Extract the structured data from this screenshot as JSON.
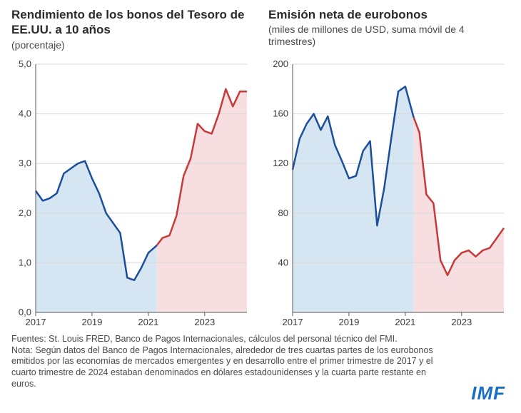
{
  "panels": [
    {
      "title": "Rendimiento de los bonos del Tesoro de EE.UU. a 10 años",
      "subtitle": "(porcentaje)",
      "type": "line",
      "x_start": 2017,
      "x_end": 2024.5,
      "x_ticks": [
        2017,
        2019,
        2021,
        2023
      ],
      "y_min": 0.0,
      "y_max": 5.0,
      "y_ticks": [
        0.0,
        1.0,
        2.0,
        3.0,
        4.0,
        5.0
      ],
      "y_tick_fmt": "comma1",
      "split_x": 2021.3,
      "fill_left_color": "#d6e5f2",
      "fill_right_color": "#f7dee0",
      "line_left_color": "#1b4f9c",
      "line_right_color": "#c83a3a",
      "line_width": 2.5,
      "series": [
        {
          "x": 2017.0,
          "y": 2.45
        },
        {
          "x": 2017.25,
          "y": 2.25
        },
        {
          "x": 2017.5,
          "y": 2.3
        },
        {
          "x": 2017.75,
          "y": 2.4
        },
        {
          "x": 2018.0,
          "y": 2.8
        },
        {
          "x": 2018.25,
          "y": 2.9
        },
        {
          "x": 2018.5,
          "y": 3.0
        },
        {
          "x": 2018.75,
          "y": 3.05
        },
        {
          "x": 2019.0,
          "y": 2.7
        },
        {
          "x": 2019.25,
          "y": 2.4
        },
        {
          "x": 2019.5,
          "y": 2.0
        },
        {
          "x": 2019.75,
          "y": 1.8
        },
        {
          "x": 2020.0,
          "y": 1.6
        },
        {
          "x": 2020.25,
          "y": 0.7
        },
        {
          "x": 2020.5,
          "y": 0.65
        },
        {
          "x": 2020.75,
          "y": 0.9
        },
        {
          "x": 2021.0,
          "y": 1.2
        },
        {
          "x": 2021.3,
          "y": 1.35
        },
        {
          "x": 2021.5,
          "y": 1.5
        },
        {
          "x": 2021.75,
          "y": 1.55
        },
        {
          "x": 2022.0,
          "y": 1.95
        },
        {
          "x": 2022.25,
          "y": 2.75
        },
        {
          "x": 2022.5,
          "y": 3.1
        },
        {
          "x": 2022.75,
          "y": 3.8
        },
        {
          "x": 2023.0,
          "y": 3.65
        },
        {
          "x": 2023.25,
          "y": 3.6
        },
        {
          "x": 2023.5,
          "y": 4.0
        },
        {
          "x": 2023.75,
          "y": 4.5
        },
        {
          "x": 2024.0,
          "y": 4.15
        },
        {
          "x": 2024.25,
          "y": 4.45
        },
        {
          "x": 2024.5,
          "y": 4.45
        }
      ],
      "background_color": "#ffffff",
      "grid_color": "#d8d8d8"
    },
    {
      "title": "Emisión neta de eurobonos",
      "subtitle": "(miles de millones de USD, suma móvil de 4 trimestres)",
      "type": "line",
      "x_start": 2017,
      "x_end": 2024.5,
      "x_ticks": [
        2017,
        2019,
        2021,
        2023
      ],
      "y_min": 0,
      "y_max": 200,
      "y_ticks": [
        40,
        80,
        120,
        160,
        200
      ],
      "y_tick_fmt": "int",
      "split_x": 2021.3,
      "fill_left_color": "#d6e5f2",
      "fill_right_color": "#f7dee0",
      "line_left_color": "#1b4f9c",
      "line_right_color": "#c83a3a",
      "line_width": 2.5,
      "series": [
        {
          "x": 2017.0,
          "y": 115
        },
        {
          "x": 2017.25,
          "y": 140
        },
        {
          "x": 2017.5,
          "y": 152
        },
        {
          "x": 2017.75,
          "y": 160
        },
        {
          "x": 2018.0,
          "y": 147
        },
        {
          "x": 2018.25,
          "y": 158
        },
        {
          "x": 2018.5,
          "y": 135
        },
        {
          "x": 2018.75,
          "y": 122
        },
        {
          "x": 2019.0,
          "y": 108
        },
        {
          "x": 2019.25,
          "y": 110
        },
        {
          "x": 2019.5,
          "y": 130
        },
        {
          "x": 2019.75,
          "y": 138
        },
        {
          "x": 2020.0,
          "y": 70
        },
        {
          "x": 2020.25,
          "y": 100
        },
        {
          "x": 2020.5,
          "y": 140
        },
        {
          "x": 2020.75,
          "y": 178
        },
        {
          "x": 2021.0,
          "y": 182
        },
        {
          "x": 2021.3,
          "y": 157
        },
        {
          "x": 2021.5,
          "y": 145
        },
        {
          "x": 2021.75,
          "y": 95
        },
        {
          "x": 2022.0,
          "y": 88
        },
        {
          "x": 2022.25,
          "y": 42
        },
        {
          "x": 2022.5,
          "y": 30
        },
        {
          "x": 2022.75,
          "y": 42
        },
        {
          "x": 2023.0,
          "y": 48
        },
        {
          "x": 2023.25,
          "y": 50
        },
        {
          "x": 2023.5,
          "y": 45
        },
        {
          "x": 2023.75,
          "y": 50
        },
        {
          "x": 2024.0,
          "y": 52
        },
        {
          "x": 2024.25,
          "y": 60
        },
        {
          "x": 2024.5,
          "y": 68
        }
      ],
      "background_color": "#ffffff",
      "grid_color": "#d8d8d8"
    }
  ],
  "footnote": "Fuentes: St. Louis FRED, Banco de Pagos Internacionales, cálculos del personal técnico del FMI.\nNota: Según datos del Banco de Pagos Internacionales, alrededor de tres cuartas partes de los eurobonos emitidos por las economías de mercados emergentes y en desarrollo entre el primer trimestre de 2017 y el cuarto trimestre de 2024 estaban denominados en dólares estadounidenses y la cuarta parte restante en euros.",
  "logo_text": "IMF",
  "logo_color": "#1b6fc2",
  "tick_fontsize": 13,
  "title_fontsize": 17,
  "sub_fontsize": 14
}
